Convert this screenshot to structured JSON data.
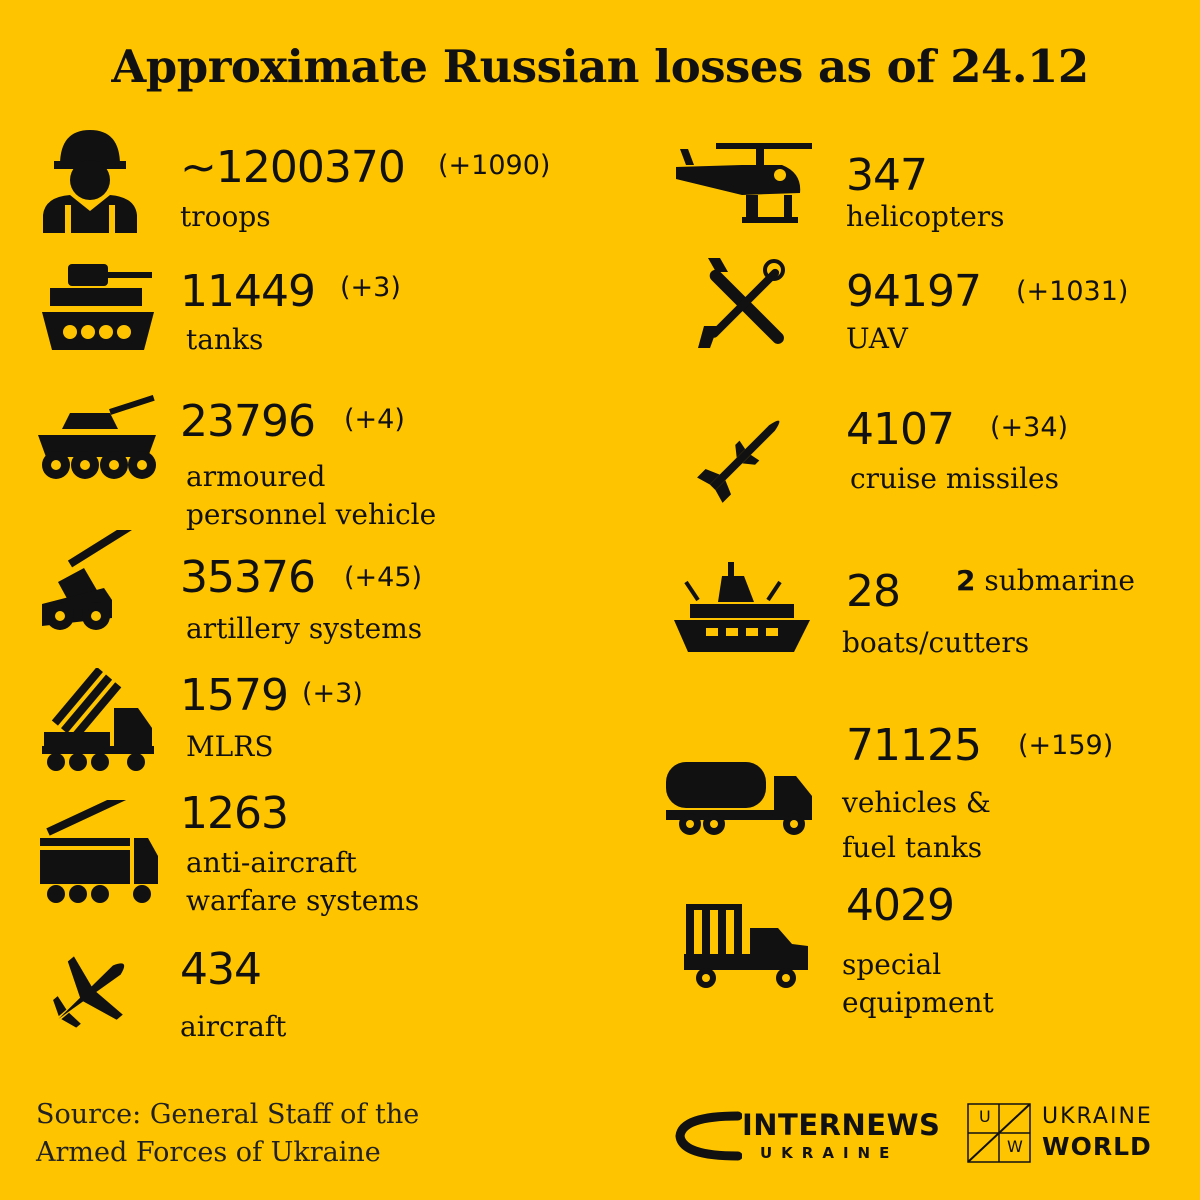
{
  "title": "Approximate Russian losses as of 24.12",
  "items": {
    "troops": {
      "value": "~1200370",
      "delta": "(+1090)",
      "label": "troops",
      "icon": "soldier-icon"
    },
    "tanks": {
      "value": "11449",
      "delta": "(+3)",
      "label": "tanks",
      "icon": "tank-icon"
    },
    "apv": {
      "value": "23796",
      "delta": "(+4)",
      "label_line1": "armoured",
      "label_line2": "personnel vehicle",
      "icon": "armoured-vehicle-icon"
    },
    "artillery": {
      "value": "35376",
      "delta": "(+45)",
      "label": "artillery systems",
      "icon": "artillery-icon"
    },
    "mlrs": {
      "value": "1579",
      "delta": "(+3)",
      "label": "MLRS",
      "icon": "mlrs-icon"
    },
    "aa": {
      "value": "1263",
      "label_line1": "anti-aircraft",
      "label_line2": "warfare systems",
      "icon": "anti-aircraft-icon"
    },
    "aircraft": {
      "value": "434",
      "label": "aircraft",
      "icon": "jet-icon"
    },
    "helicopters": {
      "value": "347",
      "label": "helicopters",
      "icon": "helicopter-icon"
    },
    "uav": {
      "value": "94197",
      "delta": "(+1031)",
      "label": "UAV",
      "icon": "drone-icon"
    },
    "missiles": {
      "value": "4107",
      "delta": "(+34)",
      "label": "cruise missiles",
      "icon": "missile-icon"
    },
    "boats": {
      "value": "28",
      "extra_num": "2",
      "extra_label": "submarine",
      "label": "boats/cutters",
      "icon": "ship-icon"
    },
    "vehicles": {
      "value": "71125",
      "delta": "(+159)",
      "label_line1": "vehicles &",
      "label_line2": "fuel tanks",
      "icon": "fuel-truck-icon"
    },
    "special": {
      "value": "4029",
      "label_line1": "special",
      "label_line2": "equipment",
      "icon": "military-truck-icon"
    }
  },
  "source": {
    "line1": "Source: General Staff of the",
    "line2": "Armed Forces of Ukraine"
  },
  "logos": {
    "internews_main": "INTERNEWS",
    "internews_sub": "UKRAINE",
    "uw_letter_u": "U",
    "uw_letter_w": "W",
    "uw_line1": "UKRAINE",
    "uw_line2": "WORLD"
  },
  "colors": {
    "background": "#ffc400",
    "foreground": "#111111"
  }
}
